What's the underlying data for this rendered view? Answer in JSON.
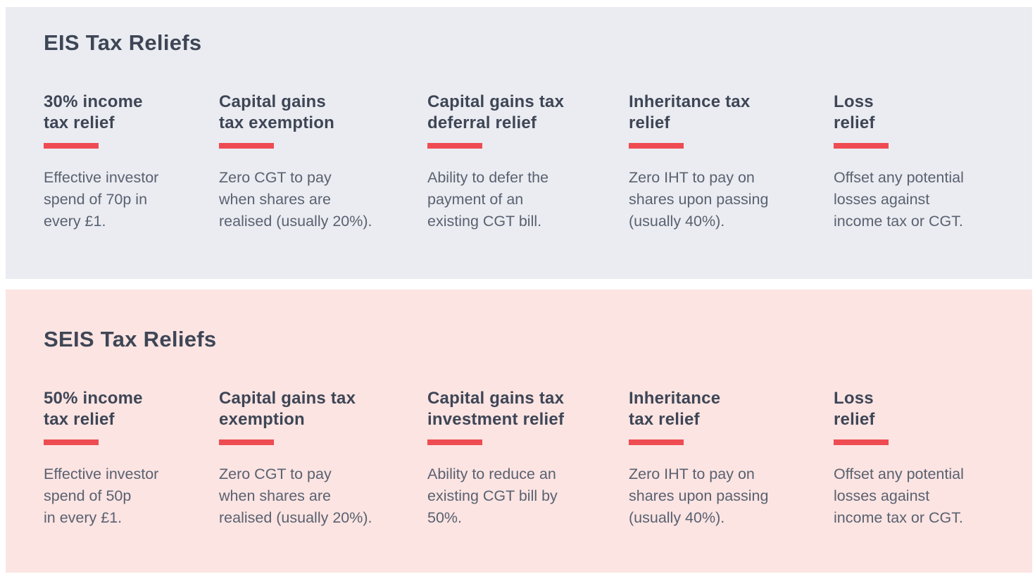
{
  "colors": {
    "page_background": "#ffffff",
    "eis_panel_background": "#eaecf1",
    "seis_panel_background": "#fbe4e2",
    "heading_text": "#3e4656",
    "body_text": "#5a6170",
    "accent_red": "#ee4c52"
  },
  "sections": [
    {
      "id": "eis",
      "title": "EIS Tax Reliefs",
      "items": [
        {
          "heading": "30% income\ntax relief",
          "body": "Effective investor\nspend of 70p in\nevery £1."
        },
        {
          "heading": "Capital gains\ntax exemption",
          "body": "Zero CGT to pay\nwhen shares are\nrealised (usually 20%)."
        },
        {
          "heading": "Capital gains tax\ndeferral relief",
          "body": "Ability to defer the\npayment of an\nexisting CGT bill."
        },
        {
          "heading": "Inheritance tax\nrelief",
          "body": "Zero IHT to pay on\nshares upon passing\n(usually 40%)."
        },
        {
          "heading": "Loss\nrelief",
          "body": "Offset any potential\nlosses against\nincome tax or CGT."
        }
      ]
    },
    {
      "id": "seis",
      "title": "SEIS Tax Reliefs",
      "items": [
        {
          "heading": "50% income\ntax relief",
          "body": "Effective investor\nspend of 50p\nin every £1."
        },
        {
          "heading": "Capital gains tax\nexemption",
          "body": "Zero CGT to pay\nwhen shares are\nrealised (usually 20%)."
        },
        {
          "heading": "Capital gains tax\ninvestment relief",
          "body": "Ability to reduce an\nexisting CGT bill by\n50%."
        },
        {
          "heading": "Inheritance\ntax relief",
          "body": "Zero IHT to pay on\nshares upon passing\n(usually 40%)."
        },
        {
          "heading": "Loss\nrelief",
          "body": "Offset any potential\nlosses against\nincome tax or CGT."
        }
      ]
    }
  ]
}
